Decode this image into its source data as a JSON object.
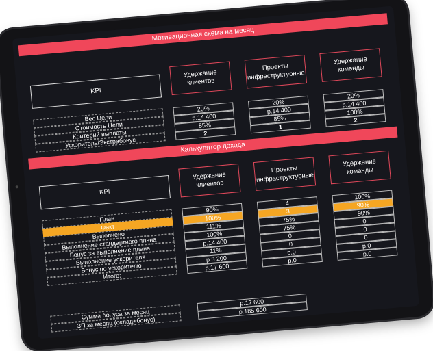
{
  "scheme": {
    "title": "Мотивационная схема на месяц",
    "kpi_label": "KPI",
    "columns": [
      "Удержание клиентов",
      "Проекты инфраструктурные",
      "Удержание команды"
    ],
    "row_labels": [
      "Вес Цели",
      "Стоимость Цели",
      "Критерий выплаты",
      "Ускоритель/Экстрабонус"
    ],
    "values": [
      [
        "20%",
        "р.14 400",
        "85%",
        "2"
      ],
      [
        "20%",
        "р.14 400",
        "85%",
        "1"
      ],
      [
        "20%",
        "р.14 400",
        "100%",
        "2"
      ]
    ]
  },
  "calc": {
    "title": "Калькулятор дохода",
    "kpi_label": "KPI",
    "columns": [
      "Удержание клиентов",
      "Проекты инфраструктурные",
      "Удержание команды"
    ],
    "row_labels": [
      "План",
      "Факт",
      "Выполнено",
      "Выполнение стандартного плана",
      "Бонус за выполнение плана",
      "Выполнение ускорителя",
      "Бонус по ускорителю",
      "Итого:"
    ],
    "values": [
      [
        "90%",
        "100%",
        "111%",
        "100%",
        "р.14 400",
        "11%",
        "р.3 200",
        "р.17 600"
      ],
      [
        "4",
        "3",
        "75%",
        "75%",
        "0",
        "0",
        "р.0",
        "р.0"
      ],
      [
        "100%",
        "90%",
        "90%",
        "0",
        "0",
        "0",
        "р.0",
        "р.0"
      ]
    ],
    "highlight_color": "#f5a623"
  },
  "summary": {
    "labels": [
      "Сумма бонуса за месяц",
      "ЗП за месяц (оклад+бонус)"
    ],
    "values": [
      "р.17 600",
      "р.185 600"
    ]
  },
  "colors": {
    "accent": "#f0475a",
    "background": "#16171d"
  }
}
